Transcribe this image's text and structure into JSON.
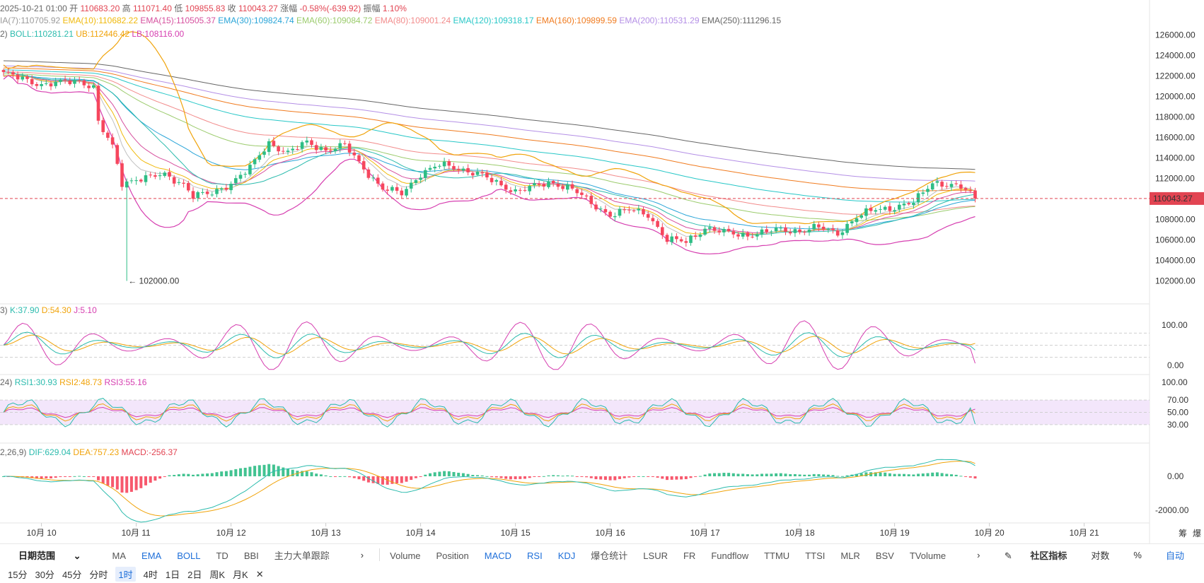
{
  "header": {
    "line1": [
      {
        "t": "2025-10-21 01:00",
        "c": "#666"
      },
      {
        "t": "开",
        "c": "#666"
      },
      {
        "t": "110683.20",
        "c": "#e24452"
      },
      {
        "t": "高",
        "c": "#666"
      },
      {
        "t": "111071.40",
        "c": "#e24452"
      },
      {
        "t": "低",
        "c": "#666"
      },
      {
        "t": "109855.83",
        "c": "#e24452"
      },
      {
        "t": "收",
        "c": "#666"
      },
      {
        "t": "110043.27",
        "c": "#e24452"
      },
      {
        "t": "涨幅",
        "c": "#666"
      },
      {
        "t": "-0.58%(-639.92)",
        "c": "#e24452"
      },
      {
        "t": "振幅",
        "c": "#666"
      },
      {
        "t": "1.10%",
        "c": "#e24452"
      }
    ],
    "line2": [
      {
        "t": "IA(7):110705.92",
        "c": "#9a9a9a"
      },
      {
        "t": "EMA(10):110682.22",
        "c": "#f0b90b"
      },
      {
        "t": "EMA(15):110505.37",
        "c": "#d64f9e"
      },
      {
        "t": "EMA(30):109824.74",
        "c": "#2aa5d8"
      },
      {
        "t": "EMA(60):109084.72",
        "c": "#9bcb6c"
      },
      {
        "t": "EMA(80):109001.24",
        "c": "#f28b8b"
      },
      {
        "t": "EMA(120):109318.17",
        "c": "#27c7c7"
      },
      {
        "t": "EMA(160):109899.59",
        "c": "#f07b1f"
      },
      {
        "t": "EMA(200):110531.29",
        "c": "#b48fe6"
      },
      {
        "t": "EMA(250):111296.15",
        "c": "#666666"
      }
    ],
    "line3": [
      {
        "t": "2)",
        "c": "#666"
      },
      {
        "t": "BOLL:110281.21",
        "c": "#2bbbad"
      },
      {
        "t": "UB:112446.42",
        "c": "#f0a30a"
      },
      {
        "t": "LB:108116.00",
        "c": "#d63eb0"
      }
    ]
  },
  "kdj": [
    {
      "t": "3)",
      "c": "#666"
    },
    {
      "t": "K:37.90",
      "c": "#2bbbad"
    },
    {
      "t": "D:54.30",
      "c": "#f0a30a"
    },
    {
      "t": "J:5.10",
      "c": "#d63eb0"
    }
  ],
  "rsi": [
    {
      "t": "24)",
      "c": "#666"
    },
    {
      "t": "RSI1:30.93",
      "c": "#2bbbad"
    },
    {
      "t": "RSI2:48.73",
      "c": "#f0a30a"
    },
    {
      "t": "RSI3:55.16",
      "c": "#d63eb0"
    }
  ],
  "macd": [
    {
      "t": "2,26,9)",
      "c": "#666"
    },
    {
      "t": "DIF:629.04",
      "c": "#2bbbad"
    },
    {
      "t": "DEA:757.23",
      "c": "#f0a30a"
    },
    {
      "t": "MACD:-256.37",
      "c": "#e24452"
    }
  ],
  "colors": {
    "up": "#2ebd85",
    "down": "#f6465d",
    "ema7": "#c0c0c0",
    "ema10": "#f0b90b",
    "ema15": "#d64f9e",
    "ema30": "#2aa5d8",
    "ema60": "#9bcb6c",
    "ema80": "#f28b8b",
    "ema120": "#27c7c7",
    "ema160": "#f07b1f",
    "ema200": "#b48fe6",
    "ema250": "#666666",
    "boll": "#2bbbad",
    "ub": "#f0a30a",
    "lb": "#d63eb0",
    "price_tag": "#e24452"
  },
  "chart_data": {
    "type": "candlestick",
    "x_ticks": [
      "10月 10",
      "10月 11",
      "10月 12",
      "10月 13",
      "10月 14",
      "10月 15",
      "10月 16",
      "10月 17",
      "10月 18",
      "10月 19",
      "10月 20",
      "10月 21"
    ],
    "price_axis": {
      "ticks": [
        "126000.00",
        "124000.00",
        "122000.00",
        "120000.00",
        "118000.00",
        "116000.00",
        "114000.00",
        "112000.00",
        "108000.00",
        "106000.00",
        "104000.00",
        "102000.00"
      ],
      "ylim": [
        101000,
        126800
      ]
    },
    "last_price_label": "110043.27",
    "low_marker_label": "← 102000.00",
    "close_anchors": [
      [
        0,
        122300
      ],
      [
        3,
        121800
      ],
      [
        8,
        121200
      ],
      [
        16,
        121500
      ],
      [
        19,
        121000
      ],
      [
        20,
        117500
      ],
      [
        23,
        115000
      ],
      [
        25,
        111500
      ],
      [
        28,
        112000
      ],
      [
        34,
        112300
      ],
      [
        38,
        111500
      ],
      [
        40,
        110300
      ],
      [
        44,
        110500
      ],
      [
        48,
        111600
      ],
      [
        52,
        113000
      ],
      [
        56,
        115500
      ],
      [
        60,
        114500
      ],
      [
        64,
        115500
      ],
      [
        68,
        114800
      ],
      [
        72,
        115200
      ],
      [
        76,
        113000
      ],
      [
        80,
        111000
      ],
      [
        84,
        110500
      ],
      [
        88,
        112500
      ],
      [
        92,
        113300
      ],
      [
        96,
        113000
      ],
      [
        100,
        112500
      ],
      [
        104,
        111500
      ],
      [
        108,
        110800
      ],
      [
        112,
        111200
      ],
      [
        116,
        111600
      ],
      [
        120,
        111000
      ],
      [
        124,
        109500
      ],
      [
        128,
        108500
      ],
      [
        132,
        108900
      ],
      [
        136,
        108500
      ],
      [
        140,
        106000
      ],
      [
        144,
        105800
      ],
      [
        148,
        107200
      ],
      [
        152,
        106700
      ],
      [
        156,
        106500
      ],
      [
        160,
        106700
      ],
      [
        164,
        107000
      ],
      [
        168,
        106900
      ],
      [
        172,
        107200
      ],
      [
        176,
        106700
      ],
      [
        180,
        108200
      ],
      [
        184,
        109000
      ],
      [
        188,
        109200
      ],
      [
        192,
        109600
      ],
      [
        196,
        111700
      ],
      [
        200,
        111300
      ],
      [
        203,
        110900
      ],
      [
        205,
        110040
      ]
    ],
    "kdj_axis": {
      "ticks": [
        "100.00",
        "0.00"
      ]
    },
    "rsi_axis": {
      "ticks": [
        "100.00",
        "70.00",
        "50.00",
        "30.00"
      ]
    },
    "macd_axis": {
      "ticks": [
        "0.00",
        "-2000.00"
      ]
    },
    "series": [
      {
        "name": "EMA(10)",
        "values": [
          "110682.22"
        ]
      },
      {
        "name": "EMA(15)",
        "values": [
          "110505.37"
        ]
      },
      {
        "name": "EMA(30)",
        "values": [
          "109824.74"
        ]
      },
      {
        "name": "EMA(60)",
        "values": [
          "109084.72"
        ]
      },
      {
        "name": "EMA(80)",
        "values": [
          "109001.24"
        ]
      },
      {
        "name": "EMA(120)",
        "values": [
          "109318.17"
        ]
      },
      {
        "name": "EMA(160)",
        "values": [
          "109899.59"
        ]
      },
      {
        "name": "EMA(200)",
        "values": [
          "110531.29"
        ]
      },
      {
        "name": "EMA(250)",
        "values": [
          "111296.15"
        ]
      }
    ]
  },
  "indicator_bar": {
    "date_range": "日期范围",
    "main_indicators": [
      "MA",
      "EMA",
      "BOLL",
      "TD",
      "BBI",
      "主力大单跟踪"
    ],
    "active_main": [
      "EMA",
      "BOLL"
    ],
    "sub_indicators": [
      "Volume",
      "Position",
      "MACD",
      "RSI",
      "KDJ",
      "爆仓统计",
      "LSUR",
      "FR",
      "Fundflow",
      "TTMU",
      "TTSI",
      "MLR",
      "BSV",
      "TVolume"
    ],
    "active_sub": [
      "MACD",
      "RSI",
      "KDJ"
    ],
    "community": "社区指标",
    "right_options": [
      "对数",
      "%",
      "自动"
    ],
    "corner": [
      "筹",
      "爆"
    ]
  },
  "intervals": [
    "15分",
    "30分",
    "45分",
    "分时",
    "1时",
    "4时",
    "1日",
    "2日",
    "周K",
    "月K"
  ],
  "active_interval": "1时"
}
